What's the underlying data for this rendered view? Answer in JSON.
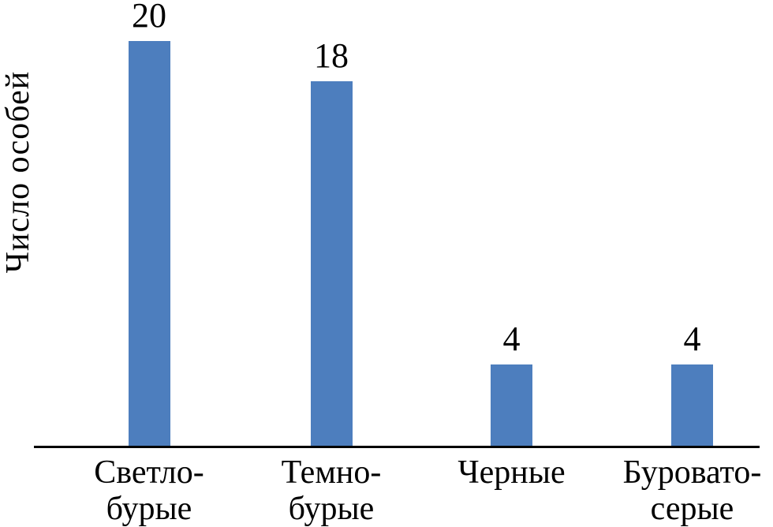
{
  "chart_data": {
    "type": "bar",
    "title": "",
    "xlabel": "",
    "ylabel": "Число особей",
    "categories": [
      "Светло-\nбурые",
      "Темно-\nбурые",
      "Черные",
      "Буровато-\nсерые"
    ],
    "values": [
      20,
      18,
      4,
      4
    ],
    "value_labels": [
      "20",
      "18",
      "4",
      "4"
    ],
    "ylim": [
      0,
      20
    ],
    "grid": "off",
    "legend": "none",
    "bar_color": "#4D7EBE",
    "axis_color": "#000000",
    "text_color": "#000000",
    "background_color": "#ffffff"
  }
}
